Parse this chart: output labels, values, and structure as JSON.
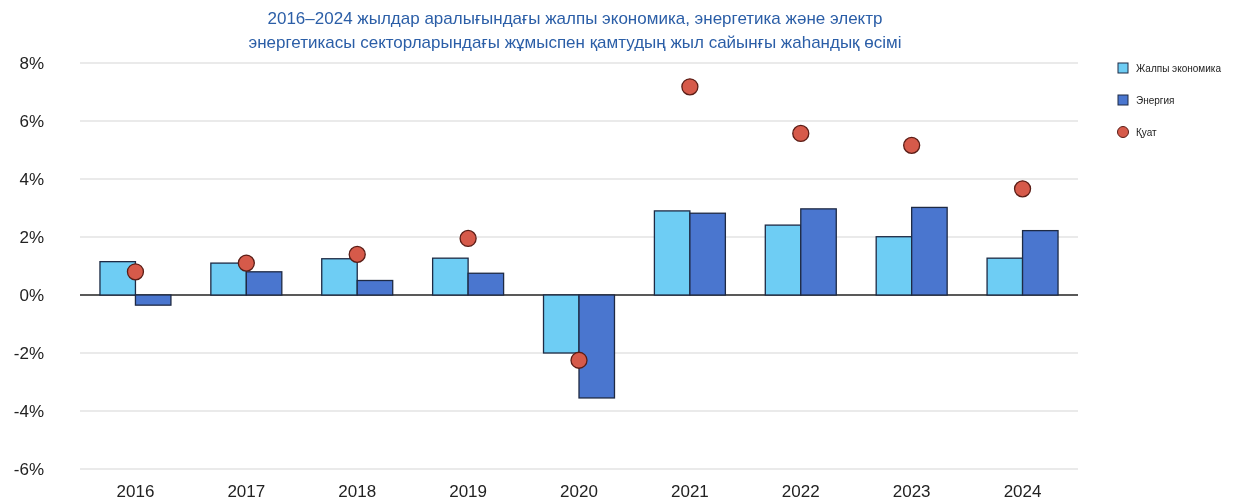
{
  "chart_data": {
    "type": "bar",
    "title": "2016–2024 жылдар аралығындағы жалпы экономика, энергетика және электр энергетикасы секторларындағы жұмыспен қамтудың жыл сайынғы жаһандық өсімі",
    "categories": [
      "2016",
      "2017",
      "2018",
      "2019",
      "2020",
      "2021",
      "2022",
      "2023",
      "2024"
    ],
    "series": [
      {
        "name": "Жалпы экономика",
        "color": "#6ecdf4",
        "values": [
          1.15,
          1.1,
          1.25,
          1.27,
          -2.0,
          2.9,
          2.41,
          2.01,
          1.27
        ]
      },
      {
        "name": "Энергия",
        "color": "#4a76cf",
        "values": [
          -0.35,
          0.8,
          0.5,
          0.75,
          -3.55,
          2.82,
          2.97,
          3.02,
          2.22
        ]
      },
      {
        "name": "Қуат",
        "type": "scatter",
        "color": "#d65a4a",
        "values": [
          0.8,
          1.1,
          1.4,
          1.95,
          -2.25,
          7.18,
          5.57,
          5.16,
          3.66
        ]
      }
    ],
    "ylim": [
      -6,
      8
    ],
    "yticks": [
      {
        "value": -6,
        "label": "-6%"
      },
      {
        "value": -4,
        "label": "-4%"
      },
      {
        "value": -2,
        "label": "-2%"
      },
      {
        "value": 0,
        "label": "0%"
      },
      {
        "value": 2,
        "label": "2%"
      },
      {
        "value": 4,
        "label": "4%"
      },
      {
        "value": 6,
        "label": "6%"
      },
      {
        "value": 8,
        "label": "8%"
      }
    ],
    "grid": "y",
    "legend": "top right",
    "marker": "circle"
  }
}
